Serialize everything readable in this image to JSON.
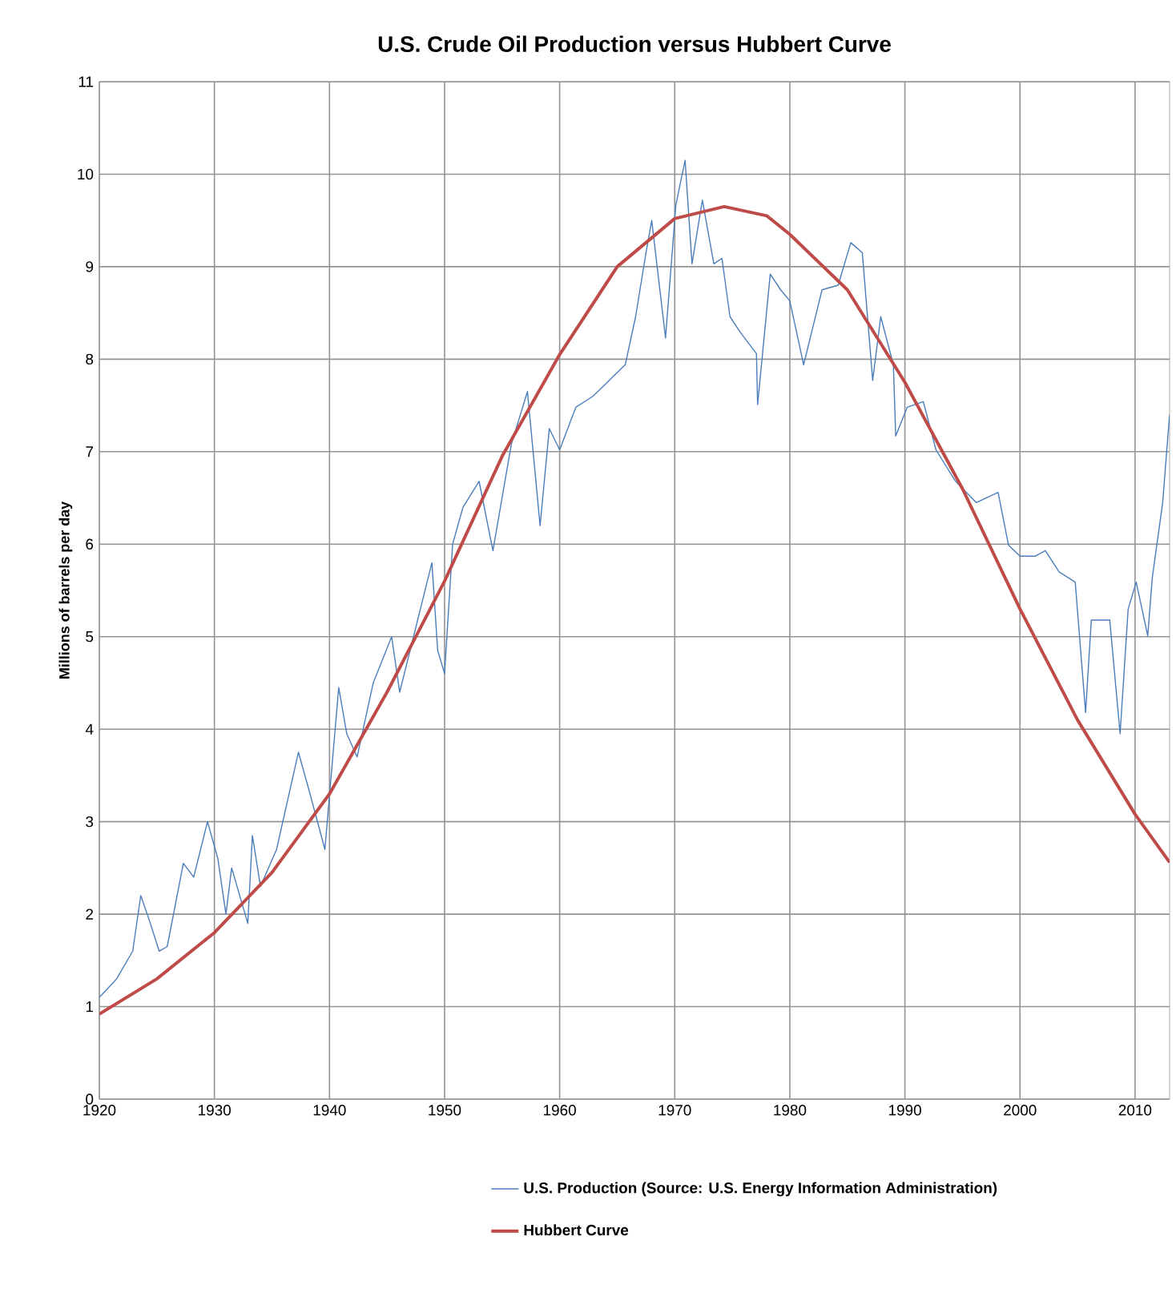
{
  "chart_data": {
    "type": "line",
    "title": "U.S. Crude Oil Production versus Hubbert Curve",
    "ylabel": "Millions of barrels per day",
    "xlim": [
      1920,
      2013
    ],
    "xticks": [
      1920,
      1930,
      1940,
      1950,
      1960,
      1970,
      1980,
      1990,
      2000,
      2010
    ],
    "ylim": [
      0,
      11
    ],
    "yticks": [
      0,
      1,
      2,
      3,
      4,
      5,
      6,
      7,
      8,
      9,
      10,
      11
    ],
    "grid": true,
    "legend": "bottom",
    "marker": "none",
    "line_style": "solid",
    "series": [
      {
        "name": "U.S. Production (Source: U.S. Energy Information Administration)",
        "color": "#4a7ebb",
        "x": [
          1920,
          1921.5,
          1922.9,
          1923.6,
          1924.3,
          1925.2,
          1925.9,
          1927.3,
          1928.2,
          1929.4,
          1930.3,
          1931,
          1931.5,
          1932.9,
          1933.3,
          1934,
          1935.4,
          1937.3,
          1938.2,
          1939.6,
          1940.8,
          1941.5,
          1942.4,
          1943.8,
          1945.4,
          1946.1,
          1947.3,
          1948.9,
          1949.4,
          1950,
          1950.7,
          1951.6,
          1953,
          1954.2,
          1955.8,
          1957.2,
          1958.3,
          1959.1,
          1960,
          1961.4,
          1962.9,
          1964.3,
          1965.7,
          1966.6,
          1967.5,
          1968,
          1969.2,
          1970.1,
          1970.9,
          1971.5,
          1972.4,
          1973.4,
          1974.1,
          1974.8,
          1975.7,
          1977.1,
          1977.2,
          1978.3,
          1979.2,
          1980,
          1981.2,
          1982.8,
          1984.2,
          1985.3,
          1986.3,
          1987.2,
          1987.9,
          1989,
          1989.2,
          1990.2,
          1991.6,
          1992.7,
          1994.4,
          1996.2,
          1998.1,
          1999,
          2000,
          2001.3,
          2002.2,
          2003.4,
          2004.8,
          2005.7,
          2006.2,
          2007.8,
          2008.7,
          2009.4,
          2010.1,
          2011.1,
          2011.5,
          2012.4,
          2013
        ],
        "values": [
          1.1,
          1.3,
          1.6,
          2.2,
          1.95,
          1.6,
          1.65,
          2.55,
          2.4,
          3.0,
          2.6,
          2.0,
          2.5,
          1.9,
          2.85,
          2.3,
          2.7,
          3.75,
          3.35,
          2.7,
          4.45,
          3.95,
          3.7,
          4.5,
          5.0,
          4.4,
          5.0,
          5.8,
          4.85,
          4.6,
          6.0,
          6.4,
          6.68,
          5.93,
          7.08,
          7.65,
          6.2,
          7.25,
          7.02,
          7.48,
          7.6,
          7.77,
          7.94,
          8.46,
          9.15,
          9.5,
          8.23,
          9.67,
          10.15,
          9.03,
          9.72,
          9.03,
          9.09,
          8.46,
          8.29,
          8.06,
          7.51,
          8.92,
          8.75,
          8.63,
          7.94,
          8.75,
          8.8,
          9.26,
          9.15,
          7.77,
          8.46,
          7.94,
          7.17,
          7.48,
          7.54,
          7.02,
          6.68,
          6.45,
          6.56,
          5.99,
          5.87,
          5.87,
          5.93,
          5.7,
          5.59,
          4.18,
          5.18,
          5.18,
          3.95,
          5.3,
          5.59,
          5.01,
          5.64,
          6.45,
          7.4
        ]
      },
      {
        "name": "Hubbert Curve",
        "color": "#be4b48",
        "x": [
          1920,
          1925,
          1930,
          1935,
          1940,
          1945,
          1950,
          1955,
          1960,
          1965,
          1970,
          1974.3,
          1978,
          1980,
          1985,
          1990,
          1995,
          2000,
          2005,
          2010,
          2013
        ],
        "values": [
          0.92,
          1.3,
          1.8,
          2.45,
          3.3,
          4.4,
          5.6,
          6.95,
          8.05,
          9.0,
          9.52,
          9.65,
          9.55,
          9.35,
          8.75,
          7.75,
          6.6,
          5.3,
          4.1,
          3.08,
          2.56
        ]
      }
    ]
  }
}
